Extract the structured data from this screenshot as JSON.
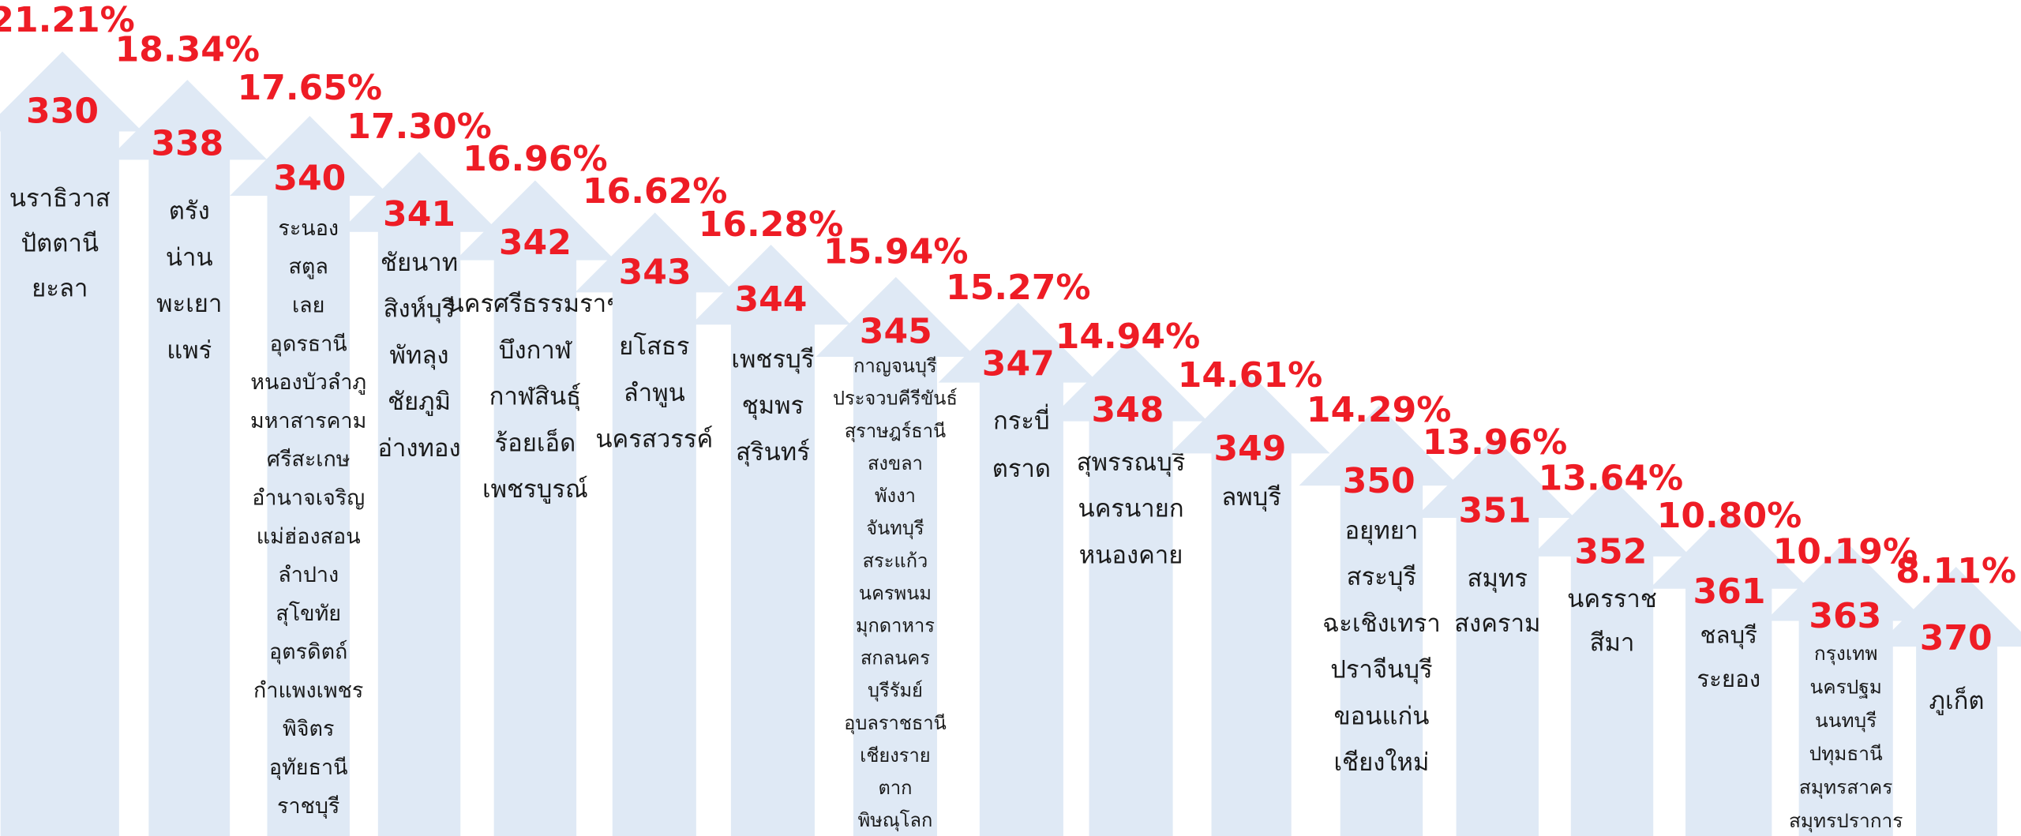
{
  "items": [
    {
      "percent": "21.21%",
      "number": "330",
      "provinces": [
        "นราธิวาส",
        "ปัตตานี",
        "ยะลา"
      ]
    },
    {
      "percent": "18.34%",
      "number": "338",
      "provinces": [
        "ตรัง",
        "น่าน",
        "พะเยา",
        "แพร่"
      ]
    },
    {
      "percent": "17.65%",
      "number": "340",
      "provinces": [
        "ระนอง",
        "สตูล",
        "เลย",
        "อุดรธานี",
        "หนองบัวลำภู",
        "มหาสารคาม",
        "ศรีสะเกษ",
        "อำนาจเจริญ",
        "แม่ฮ่องสอน",
        "ลำปาง",
        "สุโขทัย",
        "อุตรดิตถ์",
        "กำแพงเพชร",
        "พิจิตร",
        "อุทัยธานี",
        "ราชบุรี"
      ]
    },
    {
      "percent": "17.30%",
      "number": "341",
      "provinces": [
        "ชัยนาท",
        "สิงห์บุรี",
        "พัทลุง",
        "ชัยภูมิ",
        "อ่างทอง"
      ]
    },
    {
      "percent": "16.96%",
      "number": "342",
      "provinces": [
        "นครศรีธรรมราช",
        "บึงกาฬ",
        "กาฬสินธุ์",
        "ร้อยเอ็ด",
        "เพชรบูรณ์"
      ]
    },
    {
      "percent": "16.62%",
      "number": "343",
      "provinces": [
        "ยโสธร",
        "ลำพูน",
        "นครสวรรค์"
      ]
    },
    {
      "percent": "16.28%",
      "number": "344",
      "provinces": [
        "เพชรบุรี",
        "ชุมพร",
        "สุรินทร์"
      ]
    },
    {
      "percent": "15.94%",
      "number": "345",
      "provinces": [
        "กาญจนบุรี",
        "ประจวบคีรีขันธ์",
        "สุราษฎร์ธานี",
        "สงขลา",
        "พังงา",
        "จันทบุรี",
        "สระแก้ว",
        "นครพนม",
        "มุกดาหาร",
        "สกลนคร",
        "บุรีรัมย์",
        "อุบลราชธานี",
        "เชียงราย",
        "ตาก",
        "พิษณุโลก"
      ]
    },
    {
      "percent": "15.27%",
      "number": "347",
      "provinces": [
        "กระบี่",
        "ตราด"
      ]
    },
    {
      "percent": "14.94%",
      "number": "348",
      "provinces": [
        "สุพรรณบุรี",
        "นครนายก",
        "หนองคาย"
      ]
    },
    {
      "percent": "14.61%",
      "number": "349",
      "provinces": [
        "ลพบุรี"
      ]
    },
    {
      "percent": "14.29%",
      "number": "350",
      "provinces": [
        "อยุทยา",
        "สระบุรี",
        "ฉะเชิงเทรา",
        "ปราจีนบุรี",
        "ขอนแก่น",
        "เชียงใหม่"
      ]
    },
    {
      "percent": "13.96%",
      "number": "351",
      "provinces": [
        "สมุทร",
        "สงคราม"
      ]
    },
    {
      "percent": "13.64%",
      "number": "352",
      "provinces": [
        "นครราช",
        "สีมา"
      ]
    },
    {
      "percent": "10.80%",
      "number": "361",
      "provinces": [
        "ชลบุรี",
        "ระยอง"
      ]
    },
    {
      "percent": "10.19%",
      "number": "363",
      "provinces": [
        "กรุงเทพ",
        "นครปฐม",
        "นนทบุรี",
        "ปทุมธานี",
        "สมุทรสาคร",
        "สมุทรปราการ"
      ]
    },
    {
      "percent": "8.11%",
      "number": "370",
      "provinces": [
        "ภูเก็ต"
      ]
    }
  ]
}
